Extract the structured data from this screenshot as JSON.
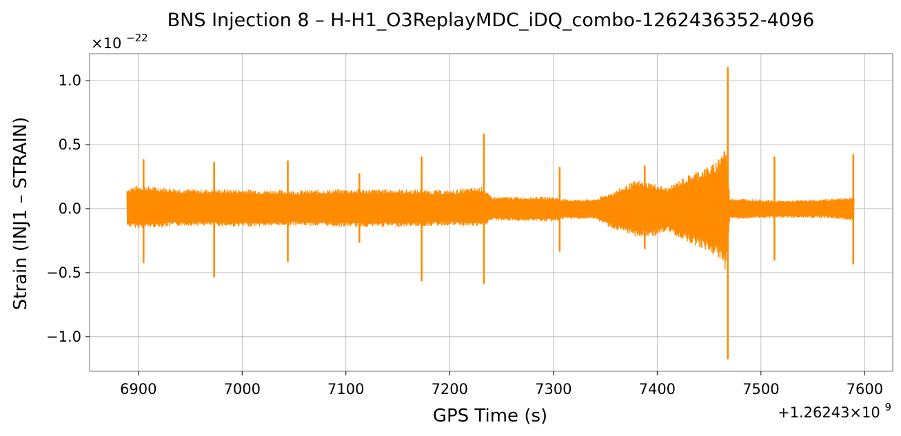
{
  "chart_data": {
    "type": "line",
    "title": "BNS Injection 8 – H-H1_O3ReplayMDC_iDQ_combo-1262436352-4096",
    "xlabel": "GPS Time (s)",
    "ylabel": "Strain (INJ1 – STRAIN)",
    "x_offset_label": "+1.26243×10",
    "x_offset_exponent": "9",
    "y_scale_label": "×10",
    "y_scale_exponent": "−22",
    "xlim": [
      6853,
      7627
    ],
    "ylim": [
      -1.27,
      1.21
    ],
    "xticks": [
      6900,
      7000,
      7100,
      7200,
      7300,
      7400,
      7500,
      7600
    ],
    "xtick_labels": [
      "6900",
      "7000",
      "7100",
      "7200",
      "7300",
      "7400",
      "7500",
      "7600"
    ],
    "yticks": [
      -1.0,
      -0.5,
      0.0,
      0.5,
      1.0
    ],
    "ytick_labels": [
      "−1.0",
      "−0.5",
      "0.0",
      "0.5",
      "1.0"
    ],
    "grid": true,
    "line_color": "#ff8c00",
    "series": [
      {
        "x_range": [
          6889,
          7590
        ],
        "envelope": [
          {
            "x": 6889,
            "upper": 0.16,
            "lower": -0.14
          },
          {
            "x": 6900,
            "upper": 0.18,
            "lower": -0.15
          },
          {
            "x": 6950,
            "upper": 0.15,
            "lower": -0.13
          },
          {
            "x": 7000,
            "upper": 0.15,
            "lower": -0.14
          },
          {
            "x": 7050,
            "upper": 0.14,
            "lower": -0.13
          },
          {
            "x": 7100,
            "upper": 0.15,
            "lower": -0.14
          },
          {
            "x": 7150,
            "upper": 0.15,
            "lower": -0.14
          },
          {
            "x": 7200,
            "upper": 0.14,
            "lower": -0.13
          },
          {
            "x": 7232,
            "upper": 0.17,
            "lower": -0.14
          },
          {
            "x": 7240,
            "upper": 0.09,
            "lower": -0.09
          },
          {
            "x": 7300,
            "upper": 0.09,
            "lower": -0.1
          },
          {
            "x": 7310,
            "upper": 0.07,
            "lower": -0.08
          },
          {
            "x": 7340,
            "upper": 0.07,
            "lower": -0.08
          },
          {
            "x": 7360,
            "upper": 0.14,
            "lower": -0.17
          },
          {
            "x": 7380,
            "upper": 0.22,
            "lower": -0.22
          },
          {
            "x": 7395,
            "upper": 0.2,
            "lower": -0.22
          },
          {
            "x": 7410,
            "upper": 0.16,
            "lower": -0.18
          },
          {
            "x": 7425,
            "upper": 0.24,
            "lower": -0.24
          },
          {
            "x": 7440,
            "upper": 0.3,
            "lower": -0.3
          },
          {
            "x": 7455,
            "upper": 0.35,
            "lower": -0.36
          },
          {
            "x": 7466,
            "upper": 0.5,
            "lower": -0.48
          },
          {
            "x": 7470,
            "upper": 0.08,
            "lower": -0.08
          },
          {
            "x": 7520,
            "upper": 0.06,
            "lower": -0.07
          },
          {
            "x": 7560,
            "upper": 0.07,
            "lower": -0.07
          },
          {
            "x": 7590,
            "upper": 0.09,
            "lower": -0.09
          }
        ],
        "spikes": [
          {
            "x": 6905,
            "upper": 0.38,
            "lower": -0.42
          },
          {
            "x": 6973,
            "upper": 0.36,
            "lower": -0.53
          },
          {
            "x": 7044,
            "upper": 0.37,
            "lower": -0.41
          },
          {
            "x": 7113,
            "upper": 0.27,
            "lower": -0.26
          },
          {
            "x": 7173,
            "upper": 0.4,
            "lower": -0.56
          },
          {
            "x": 7233,
            "upper": 0.58,
            "lower": -0.58
          },
          {
            "x": 7306,
            "upper": 0.32,
            "lower": -0.33
          },
          {
            "x": 7388,
            "upper": 0.33,
            "lower": -0.31
          },
          {
            "x": 7468,
            "upper": 1.1,
            "lower": -1.17
          },
          {
            "x": 7513,
            "upper": 0.4,
            "lower": -0.4
          },
          {
            "x": 7589,
            "upper": 0.42,
            "lower": -0.43
          }
        ]
      }
    ]
  }
}
